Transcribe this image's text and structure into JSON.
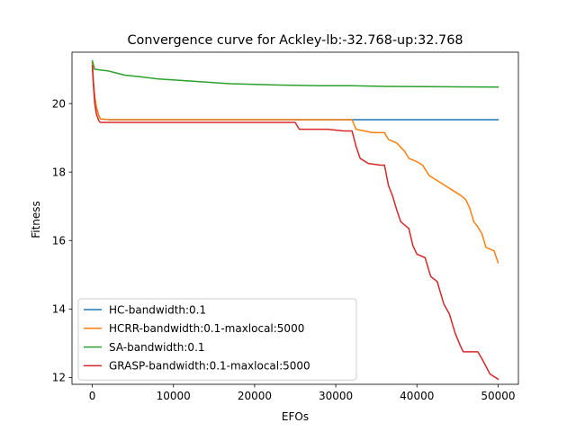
{
  "chart_data": {
    "type": "line",
    "title": "Convergence curve for Ackley-lb:-32.768-up:32.768",
    "xlabel": "EFOs",
    "ylabel": "Fitness",
    "xlim": [
      -2500,
      52500
    ],
    "ylim": [
      11.8,
      21.5
    ],
    "xticks": [
      0,
      10000,
      20000,
      30000,
      40000,
      50000
    ],
    "yticks": [
      12,
      14,
      16,
      18,
      20
    ],
    "legend_position": "lower-left",
    "grid": false,
    "series": [
      {
        "name": "HC-bandwidth:0.1",
        "color": "#1f77b4",
        "points": [
          [
            0,
            21.2
          ],
          [
            150,
            20.6
          ],
          [
            300,
            20.2
          ],
          [
            500,
            19.9
          ],
          [
            800,
            19.65
          ],
          [
            1000,
            19.55
          ],
          [
            2000,
            19.53
          ],
          [
            10000,
            19.53
          ],
          [
            50000,
            19.53
          ]
        ]
      },
      {
        "name": "HCRR-bandwidth:0.1-maxlocal:5000",
        "color": "#ff7f0e",
        "points": [
          [
            0,
            21.2
          ],
          [
            150,
            20.6
          ],
          [
            300,
            20.2
          ],
          [
            500,
            19.9
          ],
          [
            800,
            19.65
          ],
          [
            1000,
            19.55
          ],
          [
            2000,
            19.53
          ],
          [
            32000,
            19.53
          ],
          [
            32500,
            19.25
          ],
          [
            33500,
            19.2
          ],
          [
            34500,
            19.15
          ],
          [
            36000,
            19.15
          ],
          [
            36500,
            18.95
          ],
          [
            37500,
            18.85
          ],
          [
            38500,
            18.6
          ],
          [
            39000,
            18.4
          ],
          [
            40000,
            18.3
          ],
          [
            40700,
            18.2
          ],
          [
            41500,
            17.9
          ],
          [
            42500,
            17.75
          ],
          [
            43500,
            17.6
          ],
          [
            44500,
            17.45
          ],
          [
            45500,
            17.3
          ],
          [
            46000,
            17.2
          ],
          [
            46500,
            16.95
          ],
          [
            47000,
            16.55
          ],
          [
            47500,
            16.4
          ],
          [
            48000,
            16.2
          ],
          [
            48500,
            15.8
          ],
          [
            49500,
            15.7
          ],
          [
            50000,
            15.35
          ]
        ]
      },
      {
        "name": "SA-bandwidth:0.1",
        "color": "#2ca02c",
        "points": [
          [
            0,
            21.25
          ],
          [
            300,
            21.0
          ],
          [
            2000,
            20.95
          ],
          [
            4000,
            20.83
          ],
          [
            6000,
            20.78
          ],
          [
            8000,
            20.72
          ],
          [
            12000,
            20.66
          ],
          [
            17000,
            20.58
          ],
          [
            23000,
            20.54
          ],
          [
            28000,
            20.52
          ],
          [
            32000,
            20.52
          ],
          [
            36000,
            20.5
          ],
          [
            50000,
            20.48
          ]
        ]
      },
      {
        "name": "GRASP-bandwidth:0.1-maxlocal:5000",
        "color": "#d62728",
        "points": [
          [
            0,
            21.1
          ],
          [
            150,
            20.5
          ],
          [
            300,
            20.0
          ],
          [
            500,
            19.7
          ],
          [
            800,
            19.5
          ],
          [
            1000,
            19.45
          ],
          [
            25000,
            19.45
          ],
          [
            25500,
            19.25
          ],
          [
            29000,
            19.25
          ],
          [
            31000,
            19.2
          ],
          [
            32000,
            19.2
          ],
          [
            32500,
            18.75
          ],
          [
            33000,
            18.4
          ],
          [
            34000,
            18.25
          ],
          [
            35500,
            18.2
          ],
          [
            36000,
            18.2
          ],
          [
            36500,
            17.6
          ],
          [
            37000,
            17.3
          ],
          [
            37500,
            16.9
          ],
          [
            38000,
            16.55
          ],
          [
            39000,
            16.35
          ],
          [
            39500,
            15.85
          ],
          [
            40000,
            15.6
          ],
          [
            41000,
            15.5
          ],
          [
            41700,
            14.95
          ],
          [
            42500,
            14.8
          ],
          [
            43300,
            14.15
          ],
          [
            44000,
            13.85
          ],
          [
            44700,
            13.3
          ],
          [
            45300,
            12.95
          ],
          [
            45700,
            12.75
          ],
          [
            47500,
            12.75
          ],
          [
            48000,
            12.55
          ],
          [
            49000,
            12.1
          ],
          [
            50000,
            11.95
          ]
        ]
      }
    ]
  }
}
